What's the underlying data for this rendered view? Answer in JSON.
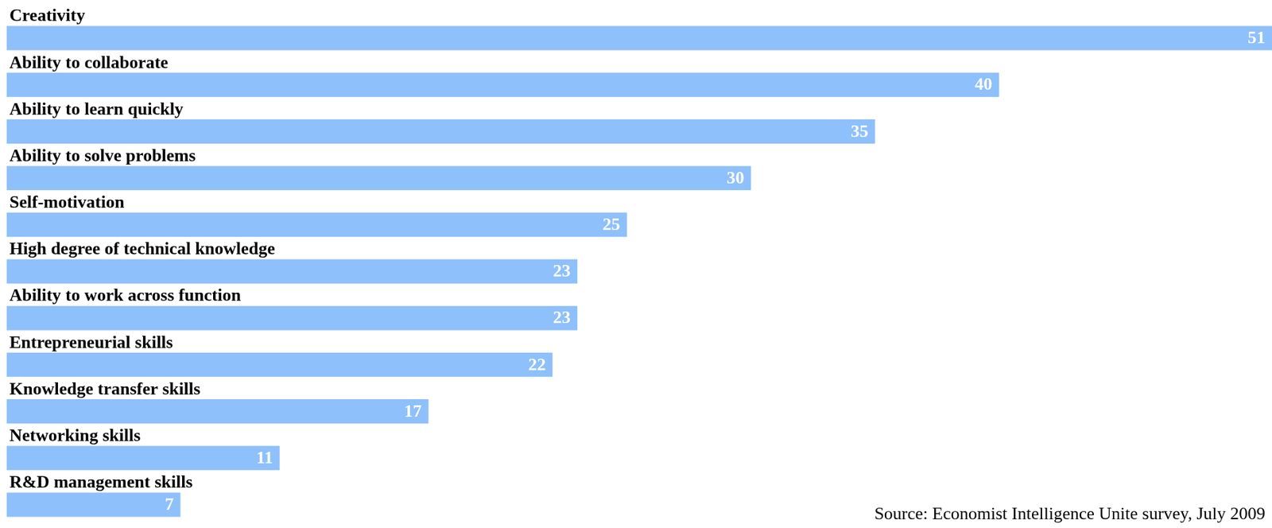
{
  "chart_data": {
    "type": "bar",
    "orientation": "horizontal",
    "categories": [
      "Creativity",
      "Ability to collaborate",
      "Ability to learn quickly",
      "Ability to solve problems",
      "Self-motivation",
      "High degree of technical knowledge",
      "Ability to work across function",
      "Entrepreneurial skills",
      "Knowledge transfer skills",
      "Networking skills",
      "R&D management skills"
    ],
    "values": [
      51,
      40,
      35,
      30,
      25,
      23,
      23,
      22,
      17,
      11,
      7
    ],
    "color": "#8ec0fb",
    "xlim": [
      0,
      51
    ],
    "grid": false,
    "tick_labels": false,
    "data_labels": true,
    "source": "Source: Economist Intelligence Unite survey, July 2009"
  }
}
